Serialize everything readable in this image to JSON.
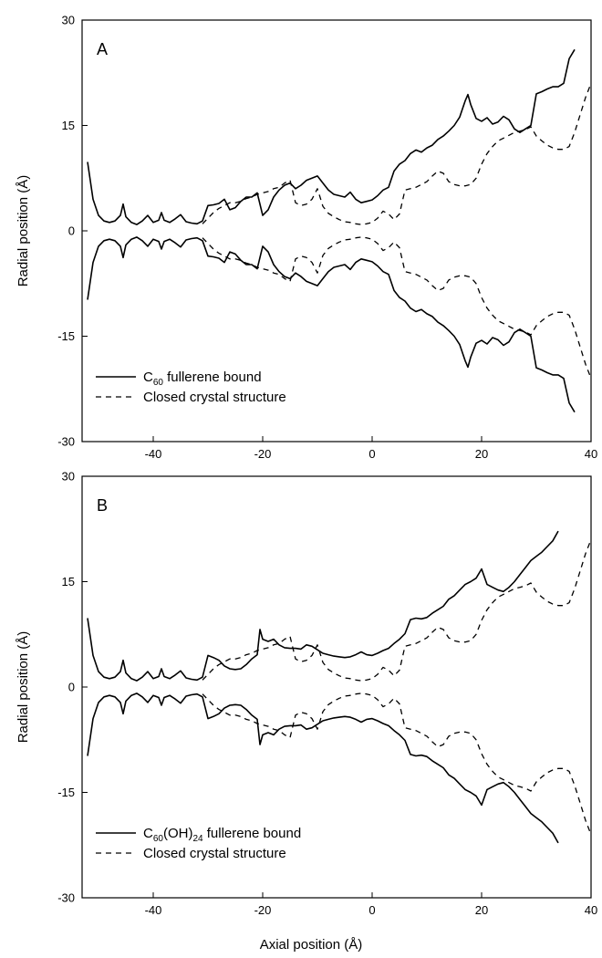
{
  "figure": {
    "xlabel": "Axial position (Å)"
  },
  "chart_data": [
    {
      "type": "line",
      "panel_label": "A",
      "ylabel": "Radial position (Å)",
      "xlim": [
        -53,
        40
      ],
      "ylim": [
        -30,
        30
      ],
      "xticks": [
        "-40",
        "-20",
        "0",
        "20",
        "40"
      ],
      "yticks": [
        "30",
        "15",
        "0",
        "-15",
        "-30"
      ],
      "xtick_values": [
        -40,
        -20,
        0,
        20,
        40
      ],
      "ytick_values": [
        30,
        15,
        0,
        -15,
        -30
      ],
      "legend_position": "bottom-left",
      "series": [
        {
          "legend_main": "C",
          "legend_sub": "60",
          "legend_rest": " fullerene bound",
          "style": "solid",
          "x": [
            -52,
            -51,
            -50,
            -49,
            -48,
            -47,
            -46,
            -45.5,
            -45,
            -44,
            -43,
            -42,
            -41,
            -40,
            -39,
            -38.5,
            -38,
            -37,
            -36,
            -35,
            -34,
            -33,
            -32,
            -31,
            -30,
            -29,
            -28,
            -27,
            -26,
            -25,
            -24,
            -23,
            -22,
            -21,
            -20,
            -19,
            -18,
            -17,
            -16,
            -15,
            -14,
            -13,
            -12,
            -11,
            -10,
            -9,
            -8,
            -7,
            -6,
            -5,
            -4,
            -3,
            -2,
            -1,
            0,
            1,
            2,
            3,
            4,
            5,
            6,
            7,
            8,
            9,
            10,
            11,
            12,
            13,
            14,
            15,
            16,
            17,
            17.5,
            18,
            19,
            20,
            21,
            22,
            23,
            24,
            25,
            26,
            27,
            28,
            29,
            30,
            31,
            32,
            33,
            34,
            35,
            36,
            37
          ],
          "y": [
            9.8,
            4.5,
            2.2,
            1.4,
            1.2,
            1.4,
            2.2,
            3.8,
            2.0,
            1.2,
            0.9,
            1.4,
            2.2,
            1.2,
            1.5,
            2.6,
            1.5,
            1.2,
            1.7,
            2.3,
            1.3,
            1.1,
            1.0,
            1.4,
            3.6,
            3.7,
            3.9,
            4.5,
            3.0,
            3.3,
            4.2,
            4.8,
            4.8,
            5.4,
            2.2,
            3.0,
            4.8,
            5.8,
            6.5,
            6.8,
            6.0,
            6.5,
            7.2,
            7.5,
            7.8,
            6.8,
            5.8,
            5.2,
            5.0,
            4.8,
            5.5,
            4.5,
            4.0,
            4.2,
            4.4,
            5.0,
            5.8,
            6.2,
            8.5,
            9.5,
            10.0,
            11.0,
            11.5,
            11.2,
            11.8,
            12.2,
            13.0,
            13.5,
            14.2,
            15.0,
            16.2,
            18.5,
            19.4,
            18.0,
            16.0,
            15.6,
            16.1,
            15.2,
            15.5,
            16.3,
            15.8,
            14.5,
            14.0,
            14.5,
            15.0,
            19.5,
            19.8,
            20.2,
            20.5,
            20.5,
            21.0,
            24.5,
            25.8
          ]
        },
        {
          "legend_text": "Closed crystal structure",
          "style": "dashed",
          "x": [
            -31,
            -30,
            -29,
            -28,
            -27,
            -26,
            -25,
            -24,
            -23,
            -22,
            -21,
            -20,
            -19,
            -18,
            -17,
            -16,
            -15,
            -14,
            -13,
            -12,
            -11,
            -10,
            -9,
            -8,
            -7,
            -6,
            -5,
            -4,
            -3,
            -2,
            -1,
            0,
            1,
            2,
            3,
            4,
            5,
            6,
            7,
            8,
            9,
            10,
            11,
            12,
            13,
            14,
            15,
            16,
            17,
            18,
            19,
            20,
            21,
            22,
            23,
            24,
            25,
            26,
            27,
            28,
            29,
            30,
            31,
            32,
            33,
            34,
            35,
            36,
            37,
            38,
            39,
            40
          ],
          "y": [
            1.0,
            1.8,
            2.6,
            3.2,
            3.6,
            4.0,
            4.0,
            4.2,
            4.6,
            4.8,
            5.2,
            5.4,
            5.6,
            6.0,
            6.2,
            6.8,
            7.2,
            4.0,
            3.6,
            3.8,
            4.5,
            6.0,
            3.5,
            2.5,
            2.0,
            1.6,
            1.3,
            1.2,
            1.0,
            0.9,
            1.0,
            1.2,
            1.8,
            2.8,
            2.4,
            1.6,
            2.4,
            5.8,
            6.0,
            6.2,
            6.6,
            7.0,
            7.8,
            8.5,
            8.2,
            7.0,
            6.6,
            6.4,
            6.4,
            6.6,
            7.5,
            9.5,
            11.0,
            12.0,
            12.8,
            13.2,
            13.6,
            14.0,
            14.2,
            14.4,
            14.8,
            13.5,
            12.8,
            12.2,
            11.8,
            11.6,
            11.6,
            12.0,
            14.0,
            16.5,
            19.0,
            21.0
          ]
        }
      ]
    },
    {
      "type": "line",
      "panel_label": "B",
      "ylabel": "Radial position (Å)",
      "xlim": [
        -53,
        40
      ],
      "ylim": [
        -30,
        30
      ],
      "xticks": [
        "-40",
        "-20",
        "0",
        "20",
        "40"
      ],
      "yticks": [
        "30",
        "15",
        "0",
        "-15",
        "-30"
      ],
      "xtick_values": [
        -40,
        -20,
        0,
        20,
        40
      ],
      "ytick_values": [
        30,
        15,
        0,
        -15,
        -30
      ],
      "legend_position": "bottom-left",
      "series": [
        {
          "legend_main": "C",
          "legend_sub": "60",
          "legend_rest": "(OH)",
          "legend_sub2": "24",
          "legend_rest2": " fullerene bound",
          "style": "solid",
          "x": [
            -52,
            -51,
            -50,
            -49,
            -48,
            -47,
            -46,
            -45.5,
            -45,
            -44,
            -43,
            -42,
            -41,
            -40,
            -39,
            -38.5,
            -38,
            -37,
            -36,
            -35,
            -34,
            -33,
            -32,
            -31,
            -30,
            -29,
            -28,
            -27,
            -26,
            -25,
            -24,
            -23,
            -22,
            -21,
            -20.5,
            -20,
            -19,
            -18,
            -17,
            -16,
            -15,
            -14,
            -13,
            -12,
            -11,
            -10,
            -9,
            -8,
            -7,
            -6,
            -5,
            -4,
            -3,
            -2,
            -1,
            0,
            1,
            2,
            3,
            4,
            5,
            6,
            7,
            8,
            9,
            10,
            11,
            12,
            13,
            14,
            15,
            16,
            17,
            18,
            19,
            20,
            21,
            22,
            23,
            24,
            25,
            26,
            27,
            28,
            29,
            30,
            31,
            32,
            33,
            34
          ],
          "y": [
            9.8,
            4.5,
            2.2,
            1.4,
            1.2,
            1.4,
            2.2,
            3.8,
            2.0,
            1.2,
            0.9,
            1.4,
            2.2,
            1.2,
            1.5,
            2.6,
            1.5,
            1.2,
            1.7,
            2.3,
            1.3,
            1.1,
            1.0,
            1.4,
            4.5,
            4.2,
            3.8,
            3.0,
            2.6,
            2.5,
            2.6,
            3.2,
            4.0,
            4.6,
            8.2,
            6.8,
            6.5,
            6.8,
            6.0,
            5.6,
            5.5,
            5.5,
            5.4,
            6.0,
            5.8,
            5.3,
            4.8,
            4.6,
            4.4,
            4.3,
            4.2,
            4.3,
            4.6,
            5.0,
            4.6,
            4.5,
            4.8,
            5.2,
            5.5,
            6.2,
            6.8,
            7.6,
            9.6,
            9.8,
            9.7,
            9.9,
            10.5,
            11.0,
            11.5,
            12.5,
            13.0,
            13.8,
            14.6,
            15.0,
            15.5,
            16.8,
            14.6,
            14.2,
            13.8,
            13.6,
            14.2,
            15.0,
            16.0,
            17.0,
            18.0,
            18.6,
            19.2,
            20.0,
            20.8,
            22.2
          ]
        },
        {
          "legend_text": "Closed crystal structure",
          "style": "dashed",
          "x": [
            -31,
            -30,
            -29,
            -28,
            -27,
            -26,
            -25,
            -24,
            -23,
            -22,
            -21,
            -20,
            -19,
            -18,
            -17,
            -16,
            -15,
            -14,
            -13,
            -12,
            -11,
            -10,
            -9,
            -8,
            -7,
            -6,
            -5,
            -4,
            -3,
            -2,
            -1,
            0,
            1,
            2,
            3,
            4,
            5,
            6,
            7,
            8,
            9,
            10,
            11,
            12,
            13,
            14,
            15,
            16,
            17,
            18,
            19,
            20,
            21,
            22,
            23,
            24,
            25,
            26,
            27,
            28,
            29,
            30,
            31,
            32,
            33,
            34,
            35,
            36,
            37,
            38,
            39,
            40
          ],
          "y": [
            1.0,
            1.8,
            2.6,
            3.2,
            3.6,
            4.0,
            4.0,
            4.2,
            4.6,
            4.8,
            5.2,
            5.4,
            5.6,
            6.0,
            6.2,
            6.8,
            7.2,
            4.0,
            3.6,
            3.8,
            4.5,
            6.0,
            3.5,
            2.5,
            2.0,
            1.6,
            1.3,
            1.2,
            1.0,
            0.9,
            1.0,
            1.2,
            1.8,
            2.8,
            2.4,
            1.6,
            2.4,
            5.8,
            6.0,
            6.2,
            6.6,
            7.0,
            7.8,
            8.5,
            8.2,
            7.0,
            6.6,
            6.4,
            6.4,
            6.6,
            7.5,
            9.5,
            11.0,
            12.0,
            12.8,
            13.2,
            13.6,
            14.0,
            14.2,
            14.4,
            14.8,
            13.5,
            12.8,
            12.2,
            11.8,
            11.6,
            11.6,
            12.0,
            14.0,
            16.5,
            19.0,
            21.0
          ]
        }
      ]
    }
  ]
}
